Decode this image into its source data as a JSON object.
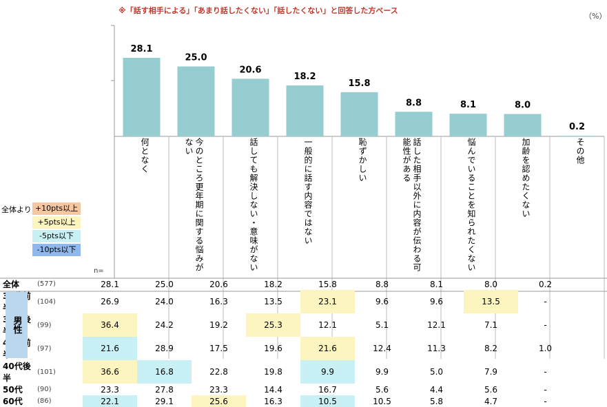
{
  "note": "※「話す相手による」「あまり話したくない」「話したくない」と回答した方ベース",
  "unit": "（%）",
  "legend": {
    "title": "全体より",
    "items": [
      {
        "label": "+10pts以上",
        "color": "#f5c7a0"
      },
      {
        "label": "+5pts以上",
        "color": "#fdf5c0"
      },
      {
        "label": "-5pts以下",
        "color": "#c9f1f5"
      },
      {
        "label": "-10pts以下",
        "color": "#8fb9ee"
      }
    ]
  },
  "n_label": "n=",
  "gender_label": "男性",
  "bar_color": "#96cdd0",
  "chart_data": {
    "type": "bar",
    "categories": [
      "何となく",
      "今のところ更年期に関する悩みがない",
      "話しても解決しない・意味がない",
      "一般的に話す内容ではない",
      "恥ずかしい",
      "話した相手以外に内容が伝わる可能性がある",
      "悩んでいることを知られたくない",
      "加齢を認めたくない",
      "その他"
    ],
    "values": [
      28.1,
      25.0,
      20.6,
      18.2,
      15.8,
      8.8,
      8.1,
      8.0,
      0.2
    ],
    "value_labels": [
      "28.1",
      "25.0",
      "20.6",
      "18.2",
      "15.8",
      "8.8",
      "8.1",
      "8.0",
      "0.2"
    ],
    "ylim": [
      0,
      35
    ],
    "grid": false
  },
  "table": {
    "total": {
      "label": "全体",
      "n": "(577)",
      "values": [
        "28.1",
        "25.0",
        "20.6",
        "18.2",
        "15.8",
        "8.8",
        "8.1",
        "8.0",
        "0.2"
      ]
    },
    "rows": [
      {
        "label": "30代前半",
        "n": "(104)",
        "values": [
          "26.9",
          "24.0",
          "16.3",
          "13.5",
          "23.1",
          "9.6",
          "9.6",
          "13.5",
          "-"
        ]
      },
      {
        "label": "30代後半",
        "n": "(99)",
        "values": [
          "36.4",
          "24.2",
          "19.2",
          "25.3",
          "12.1",
          "5.1",
          "12.1",
          "7.1",
          "-"
        ]
      },
      {
        "label": "40代前半",
        "n": "(97)",
        "values": [
          "21.6",
          "28.9",
          "17.5",
          "19.6",
          "21.6",
          "12.4",
          "11.3",
          "8.2",
          "1.0"
        ]
      },
      {
        "label": "40代後半",
        "n": "(101)",
        "values": [
          "36.6",
          "16.8",
          "22.8",
          "19.8",
          "9.9",
          "9.9",
          "5.0",
          "7.9",
          "-"
        ]
      },
      {
        "label": "50代",
        "n": "(90)",
        "values": [
          "23.3",
          "27.8",
          "23.3",
          "14.4",
          "16.7",
          "5.6",
          "4.4",
          "5.6",
          "-"
        ]
      },
      {
        "label": "60代",
        "n": "(86)",
        "values": [
          "22.1",
          "29.1",
          "25.6",
          "16.3",
          "10.5",
          "10.5",
          "5.8",
          "4.7",
          "-"
        ]
      }
    ]
  }
}
